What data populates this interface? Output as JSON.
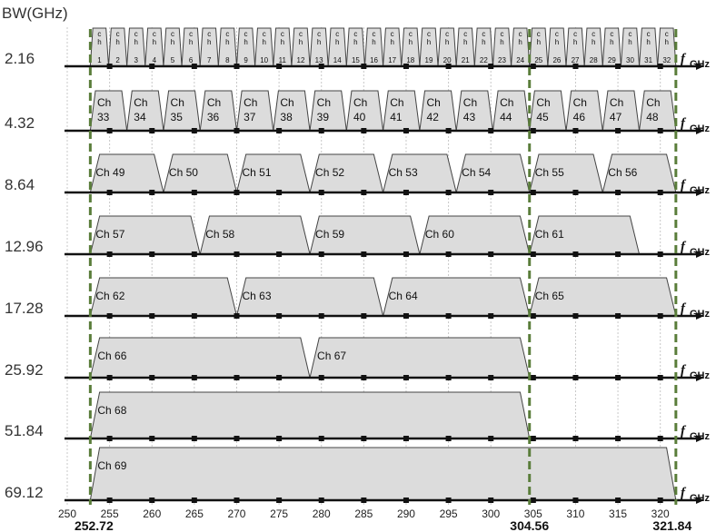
{
  "y_axis_title": "BW(GHz)",
  "freq_label": "f",
  "freq_unit": "GHz",
  "x_range": [
    250,
    322.5
  ],
  "x_ticks": [
    250,
    255,
    260,
    265,
    270,
    275,
    280,
    285,
    290,
    295,
    300,
    305,
    310,
    315,
    320
  ],
  "markers": [
    "252.72",
    "304.56",
    "321.84"
  ],
  "marker_values": [
    252.72,
    304.56,
    321.84
  ],
  "colors": {
    "fill": "#dcdcdc",
    "stroke": "#444444",
    "dash": "#5a7d3a",
    "axis": "#111111",
    "grid": "#c8c8c8"
  },
  "rows": [
    {
      "bw": "2.16",
      "width": 2.16,
      "style": "narrow",
      "channels": [
        {
          "num": "1"
        },
        {
          "num": "2"
        },
        {
          "num": "3"
        },
        {
          "num": "4"
        },
        {
          "num": "5"
        },
        {
          "num": "6"
        },
        {
          "num": "7"
        },
        {
          "num": "8"
        },
        {
          "num": "9"
        },
        {
          "num": "10"
        },
        {
          "num": "11"
        },
        {
          "num": "12"
        },
        {
          "num": "13"
        },
        {
          "num": "14"
        },
        {
          "num": "15"
        },
        {
          "num": "16"
        },
        {
          "num": "17"
        },
        {
          "num": "18"
        },
        {
          "num": "19"
        },
        {
          "num": "20"
        },
        {
          "num": "21"
        },
        {
          "num": "22"
        },
        {
          "num": "23"
        },
        {
          "num": "24"
        },
        {
          "num": "25"
        },
        {
          "num": "26"
        },
        {
          "num": "27"
        },
        {
          "num": "28"
        },
        {
          "num": "29"
        },
        {
          "num": "30"
        },
        {
          "num": "31"
        },
        {
          "num": "32"
        }
      ]
    },
    {
      "bw": "4.32",
      "width": 4.32,
      "style": "stacked",
      "channels": [
        {
          "label": "Ch",
          "num": "33"
        },
        {
          "label": "Ch",
          "num": "34"
        },
        {
          "label": "Ch",
          "num": "35"
        },
        {
          "label": "Ch",
          "num": "36"
        },
        {
          "label": "Ch",
          "num": "37"
        },
        {
          "label": "Ch",
          "num": "38"
        },
        {
          "label": "Ch",
          "num": "39"
        },
        {
          "label": "Ch",
          "num": "40"
        },
        {
          "label": "Ch",
          "num": "41"
        },
        {
          "label": "Ch",
          "num": "42"
        },
        {
          "label": "Ch",
          "num": "43"
        },
        {
          "label": "Ch",
          "num": "44"
        },
        {
          "label": "Ch",
          "num": "45"
        },
        {
          "label": "Ch",
          "num": "46"
        },
        {
          "label": "Ch",
          "num": "47"
        },
        {
          "label": "Ch",
          "num": "48"
        }
      ]
    },
    {
      "bw": "8.64",
      "width": 8.64,
      "style": "inline",
      "channels": [
        {
          "label": "Ch 49"
        },
        {
          "label": "Ch 50"
        },
        {
          "label": "Ch 51"
        },
        {
          "label": "Ch 52"
        },
        {
          "label": "Ch 53"
        },
        {
          "label": "Ch 54"
        },
        {
          "label": "Ch 55"
        },
        {
          "label": "Ch 56"
        }
      ]
    },
    {
      "bw": "12.96",
      "width": 12.96,
      "style": "inline",
      "channels": [
        {
          "label": "Ch 57"
        },
        {
          "label": "Ch 58"
        },
        {
          "label": "Ch 59"
        },
        {
          "label": "Ch 60"
        },
        {
          "label": "Ch 61"
        }
      ]
    },
    {
      "bw": "17.28",
      "width": 17.28,
      "style": "inline",
      "channels": [
        {
          "label": "Ch 62"
        },
        {
          "label": "Ch 63"
        },
        {
          "label": "Ch 64"
        },
        {
          "label": "Ch 65"
        }
      ]
    },
    {
      "bw": "25.92",
      "width": 25.92,
      "style": "inline",
      "channels": [
        {
          "label": "Ch 66"
        },
        {
          "label": "Ch 67"
        }
      ]
    },
    {
      "bw": "51.84",
      "width": 51.84,
      "style": "inline",
      "channels": [
        {
          "label": "Ch 68"
        }
      ]
    },
    {
      "bw": "69.12",
      "width": 69.12,
      "style": "inline",
      "channels": [
        {
          "label": "Ch 69"
        }
      ]
    }
  ]
}
